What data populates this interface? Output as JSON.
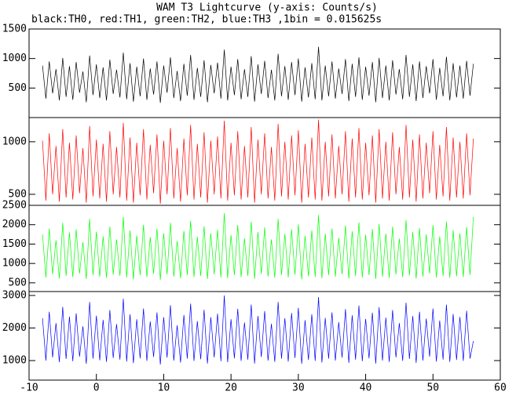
{
  "chart_data": [
    {
      "type": "line",
      "title": "WAM T3 Lightcurve (y-axis: Counts/s)",
      "subtitle": "black:TH0, red:TH1, green:TH2, blue:TH3 ,1bin = 0.015625s",
      "x": [
        -8,
        -7.5,
        -7,
        -6.5,
        -6,
        -5.5,
        -5,
        -4.5,
        -4,
        -3.5,
        -3,
        -2.5,
        -2,
        -1.5,
        -1,
        -0.5,
        0,
        0.5,
        1,
        1.5,
        2,
        2.5,
        3,
        3.5,
        4,
        4.5,
        5,
        5.5,
        6,
        6.5,
        7,
        7.5,
        8,
        8.5,
        9,
        9.5,
        10,
        10.5,
        11,
        11.5,
        12,
        12.5,
        13,
        13.5,
        14,
        14.5,
        15,
        15.5,
        16,
        16.5,
        17,
        17.5,
        18,
        18.5,
        19,
        19.5,
        20,
        20.5,
        21,
        21.5,
        22,
        22.5,
        23,
        23.5,
        24,
        24.5,
        25,
        25.5,
        26,
        26.5,
        27,
        27.5,
        28,
        28.5,
        29,
        29.5,
        30,
        30.5,
        31,
        31.5,
        32,
        32.5,
        33,
        33.5,
        34,
        34.5,
        35,
        35.5,
        36,
        36.5,
        37,
        37.5,
        38,
        38.5,
        39,
        39.5,
        40,
        40.5,
        41,
        41.5,
        42,
        42.5,
        43,
        43.5,
        44,
        44.5,
        45,
        45.5,
        46,
        46.5,
        47,
        47.5,
        48,
        48.5,
        49,
        49.5,
        50,
        50.5,
        51,
        51.5,
        52,
        52.5,
        53,
        53.5,
        54,
        54.5,
        55,
        55.5,
        56
      ],
      "xlim": [
        -10,
        60
      ],
      "ylim": [
        0,
        1500
      ],
      "yticks": [
        500,
        1000,
        1500
      ],
      "series": [
        {
          "color": "#000000",
          "values": [
            880,
            320,
            950,
            410,
            820,
            290,
            1010,
            350,
            870,
            300,
            940,
            420,
            780,
            260,
            1050,
            380,
            900,
            330,
            850,
            290,
            980,
            400,
            810,
            340,
            1100,
            310,
            920,
            270,
            860,
            360,
            1000,
            300,
            830,
            390,
            950,
            250,
            880,
            420,
            1020,
            330,
            790,
            280,
            910,
            370,
            1060,
            300,
            840,
            350,
            970,
            260,
            890,
            410,
            930,
            320,
            1150,
            290,
            860,
            380,
            990,
            310,
            820,
            350,
            1040,
            270,
            900,
            400,
            960,
            330,
            810,
            290,
            1080,
            360,
            870,
            300,
            940,
            380,
            1000,
            270,
            850,
            340,
            920,
            310,
            1200,
            290,
            880,
            360,
            950,
            320,
            830,
            400,
            990,
            280,
            910,
            350,
            1020,
            300,
            860,
            370,
            940,
            260,
            1010,
            330,
            880,
            290,
            970,
            390,
            820,
            310,
            1060,
            350,
            900,
            280,
            950,
            330,
            870,
            410,
            990,
            300,
            840,
            360,
            1030,
            290,
            920,
            340,
            880,
            320,
            960,
            370,
            910
          ]
        }
      ]
    },
    {
      "type": "line",
      "x": [
        -8,
        -7.5,
        -7,
        -6.5,
        -6,
        -5.5,
        -5,
        -4.5,
        -4,
        -3.5,
        -3,
        -2.5,
        -2,
        -1.5,
        -1,
        -0.5,
        0,
        0.5,
        1,
        1.5,
        2,
        2.5,
        3,
        3.5,
        4,
        4.5,
        5,
        5.5,
        6,
        6.5,
        7,
        7.5,
        8,
        8.5,
        9,
        9.5,
        10,
        10.5,
        11,
        11.5,
        12,
        12.5,
        13,
        13.5,
        14,
        14.5,
        15,
        15.5,
        16,
        16.5,
        17,
        17.5,
        18,
        18.5,
        19,
        19.5,
        20,
        20.5,
        21,
        21.5,
        22,
        22.5,
        23,
        23.5,
        24,
        24.5,
        25,
        25.5,
        26,
        26.5,
        27,
        27.5,
        28,
        28.5,
        29,
        29.5,
        30,
        30.5,
        31,
        31.5,
        32,
        32.5,
        33,
        33.5,
        34,
        34.5,
        35,
        35.5,
        36,
        36.5,
        37,
        37.5,
        38,
        38.5,
        39,
        39.5,
        40,
        40.5,
        41,
        41.5,
        42,
        42.5,
        43,
        43.5,
        44,
        44.5,
        45,
        45.5,
        46,
        46.5,
        47,
        47.5,
        48,
        48.5,
        49,
        49.5,
        50,
        50.5,
        51,
        51.5,
        52,
        52.5,
        53,
        53.5,
        54,
        54.5,
        55,
        55.5,
        56
      ],
      "xlim": [
        -10,
        60
      ],
      "ylim": [
        395,
        1230
      ],
      "yticks": [
        500,
        1000
      ],
      "series": [
        {
          "color": "#ff0000",
          "values": [
            1010,
            440,
            1080,
            500,
            960,
            430,
            1120,
            470,
            990,
            450,
            1060,
            510,
            940,
            420,
            1150,
            480,
            1020,
            460,
            980,
            430,
            1100,
            500,
            950,
            470,
            1180,
            440,
            1040,
            420,
            990,
            490,
            1120,
            450,
            970,
            510,
            1070,
            410,
            1010,
            500,
            1130,
            460,
            940,
            430,
            1030,
            490,
            1160,
            450,
            980,
            470,
            1090,
            420,
            1010,
            500,
            1050,
            460,
            1200,
            440,
            990,
            490,
            1100,
            450,
            960,
            470,
            1140,
            420,
            1020,
            500,
            1080,
            460,
            950,
            440,
            1170,
            480,
            1000,
            450,
            1060,
            490,
            1110,
            420,
            980,
            470,
            1040,
            450,
            1210,
            440,
            1000,
            480,
            1070,
            460,
            960,
            500,
            1100,
            430,
            1030,
            470,
            1130,
            450,
            990,
            490,
            1060,
            420,
            1120,
            460,
            1000,
            440,
            1090,
            500,
            950,
            450,
            1160,
            470,
            1020,
            430,
            1070,
            460,
            990,
            510,
            1100,
            450,
            970,
            480,
            1140,
            440,
            1040,
            470,
            1000,
            460,
            1080,
            490,
            1030
          ]
        }
      ]
    },
    {
      "type": "line",
      "x": [
        -8,
        -7.5,
        -7,
        -6.5,
        -6,
        -5.5,
        -5,
        -4.5,
        -4,
        -3.5,
        -3,
        -2.5,
        -2,
        -1.5,
        -1,
        -0.5,
        0,
        0.5,
        1,
        1.5,
        2,
        2.5,
        3,
        3.5,
        4,
        4.5,
        5,
        5.5,
        6,
        6.5,
        7,
        7.5,
        8,
        8.5,
        9,
        9.5,
        10,
        10.5,
        11,
        11.5,
        12,
        12.5,
        13,
        13.5,
        14,
        14.5,
        15,
        15.5,
        16,
        16.5,
        17,
        17.5,
        18,
        18.5,
        19,
        19.5,
        20,
        20.5,
        21,
        21.5,
        22,
        22.5,
        23,
        23.5,
        24,
        24.5,
        25,
        25.5,
        26,
        26.5,
        27,
        27.5,
        28,
        28.5,
        29,
        29.5,
        30,
        30.5,
        31,
        31.5,
        32,
        32.5,
        33,
        33.5,
        34,
        34.5,
        35,
        35.5,
        36,
        36.5,
        37,
        37.5,
        38,
        38.5,
        39,
        39.5,
        40,
        40.5,
        41,
        41.5,
        42,
        42.5,
        43,
        43.5,
        44,
        44.5,
        45,
        45.5,
        46,
        46.5,
        47,
        47.5,
        48,
        48.5,
        49,
        49.5,
        50,
        50.5,
        51,
        51.5,
        52,
        52.5,
        53,
        53.5,
        54,
        54.5,
        55,
        55.5,
        56
      ],
      "xlim": [
        -10,
        60
      ],
      "ylim": [
        275,
        2500
      ],
      "yticks": [
        500,
        1000,
        1500,
        2000,
        2500
      ],
      "series": [
        {
          "color": "#00ff00",
          "values": [
            1750,
            640,
            1900,
            720,
            1600,
            610,
            2050,
            680,
            1800,
            650,
            1880,
            740,
            1550,
            600,
            2150,
            700,
            1820,
            660,
            1700,
            630,
            1950,
            710,
            1620,
            680,
            2200,
            640,
            1850,
            590,
            1720,
            700,
            2000,
            650,
            1680,
            730,
            1900,
            580,
            1780,
            720,
            2050,
            660,
            1580,
            620,
            1840,
            700,
            2100,
            650,
            1690,
            680,
            1960,
            600,
            1780,
            720,
            1870,
            640,
            2300,
            620,
            1730,
            700,
            1990,
            650,
            1650,
            680,
            2080,
            600,
            1810,
            730,
            1930,
            660,
            1620,
            630,
            2150,
            700,
            1760,
            640,
            1880,
            710,
            2010,
            590,
            1710,
            670,
            1850,
            650,
            2250,
            620,
            1770,
            700,
            1900,
            660,
            1660,
            720,
            1980,
            610,
            1830,
            680,
            2060,
            640,
            1740,
            700,
            1890,
            600,
            2020,
            660,
            1770,
            630,
            1950,
            720,
            1640,
            650,
            2120,
            690,
            1810,
            610,
            1910,
            660,
            1750,
            740,
            1990,
            640,
            1700,
            680,
            2080,
            630,
            1860,
            670,
            1780,
            650,
            1940,
            700,
            2200
          ]
        }
      ]
    },
    {
      "type": "line",
      "x": [
        -8,
        -7.5,
        -7,
        -6.5,
        -6,
        -5.5,
        -5,
        -4.5,
        -4,
        -3.5,
        -3,
        -2.5,
        -2,
        -1.5,
        -1,
        -0.5,
        0,
        0.5,
        1,
        1.5,
        2,
        2.5,
        3,
        3.5,
        4,
        4.5,
        5,
        5.5,
        6,
        6.5,
        7,
        7.5,
        8,
        8.5,
        9,
        9.5,
        10,
        10.5,
        11,
        11.5,
        12,
        12.5,
        13,
        13.5,
        14,
        14.5,
        15,
        15.5,
        16,
        16.5,
        17,
        17.5,
        18,
        18.5,
        19,
        19.5,
        20,
        20.5,
        21,
        21.5,
        22,
        22.5,
        23,
        23.5,
        24,
        24.5,
        25,
        25.5,
        26,
        26.5,
        27,
        27.5,
        28,
        28.5,
        29,
        29.5,
        30,
        30.5,
        31,
        31.5,
        32,
        32.5,
        33,
        33.5,
        34,
        34.5,
        35,
        35.5,
        36,
        36.5,
        37,
        37.5,
        38,
        38.5,
        39,
        39.5,
        40,
        40.5,
        41,
        41.5,
        42,
        42.5,
        43,
        43.5,
        44,
        44.5,
        45,
        45.5,
        46,
        46.5,
        47,
        47.5,
        48,
        48.5,
        49,
        49.5,
        50,
        50.5,
        51,
        51.5,
        52,
        52.5,
        53,
        53.5,
        54,
        54.5,
        55,
        55.5,
        56
      ],
      "xlim": [
        -10,
        60
      ],
      "xticks": [
        -10,
        0,
        10,
        20,
        30,
        40,
        50,
        60
      ],
      "ylim": [
        400,
        3120
      ],
      "yticks": [
        1000,
        2000,
        3000
      ],
      "series": [
        {
          "color": "#0000ff",
          "values": [
            2300,
            1000,
            2500,
            1100,
            2150,
            950,
            2650,
            1050,
            2350,
            980,
            2450,
            1120,
            2050,
            900,
            2800,
            1060,
            2380,
            1010,
            2250,
            960,
            2550,
            1080,
            2120,
            1030,
            2900,
            970,
            2420,
            920,
            2270,
            1070,
            2600,
            990,
            2200,
            1110,
            2480,
            880,
            2330,
            1090,
            2700,
            1000,
            2080,
            940,
            2400,
            1060,
            2750,
            990,
            2210,
            1040,
            2560,
            910,
            2330,
            1100,
            2440,
            980,
            3000,
            950,
            2270,
            1070,
            2590,
            990,
            2170,
            1030,
            2720,
            910,
            2370,
            1110,
            2520,
            1000,
            2130,
            960,
            2800,
            1060,
            2300,
            970,
            2460,
            1080,
            2620,
            900,
            2240,
            1020,
            2420,
            990,
            2950,
            940,
            2310,
            1060,
            2480,
            1000,
            2180,
            1090,
            2580,
            930,
            2390,
            1030,
            2690,
            980,
            2280,
            1070,
            2470,
            910,
            2640,
            1000,
            2320,
            960,
            2550,
            1100,
            2150,
            990,
            2780,
            1050,
            2370,
            930,
            2500,
            1000,
            2290,
            1120,
            2600,
            970,
            2230,
            1030,
            2720,
            960,
            2430,
            1020,
            2340,
            990,
            2530,
            1060,
            1600
          ]
        }
      ]
    }
  ]
}
